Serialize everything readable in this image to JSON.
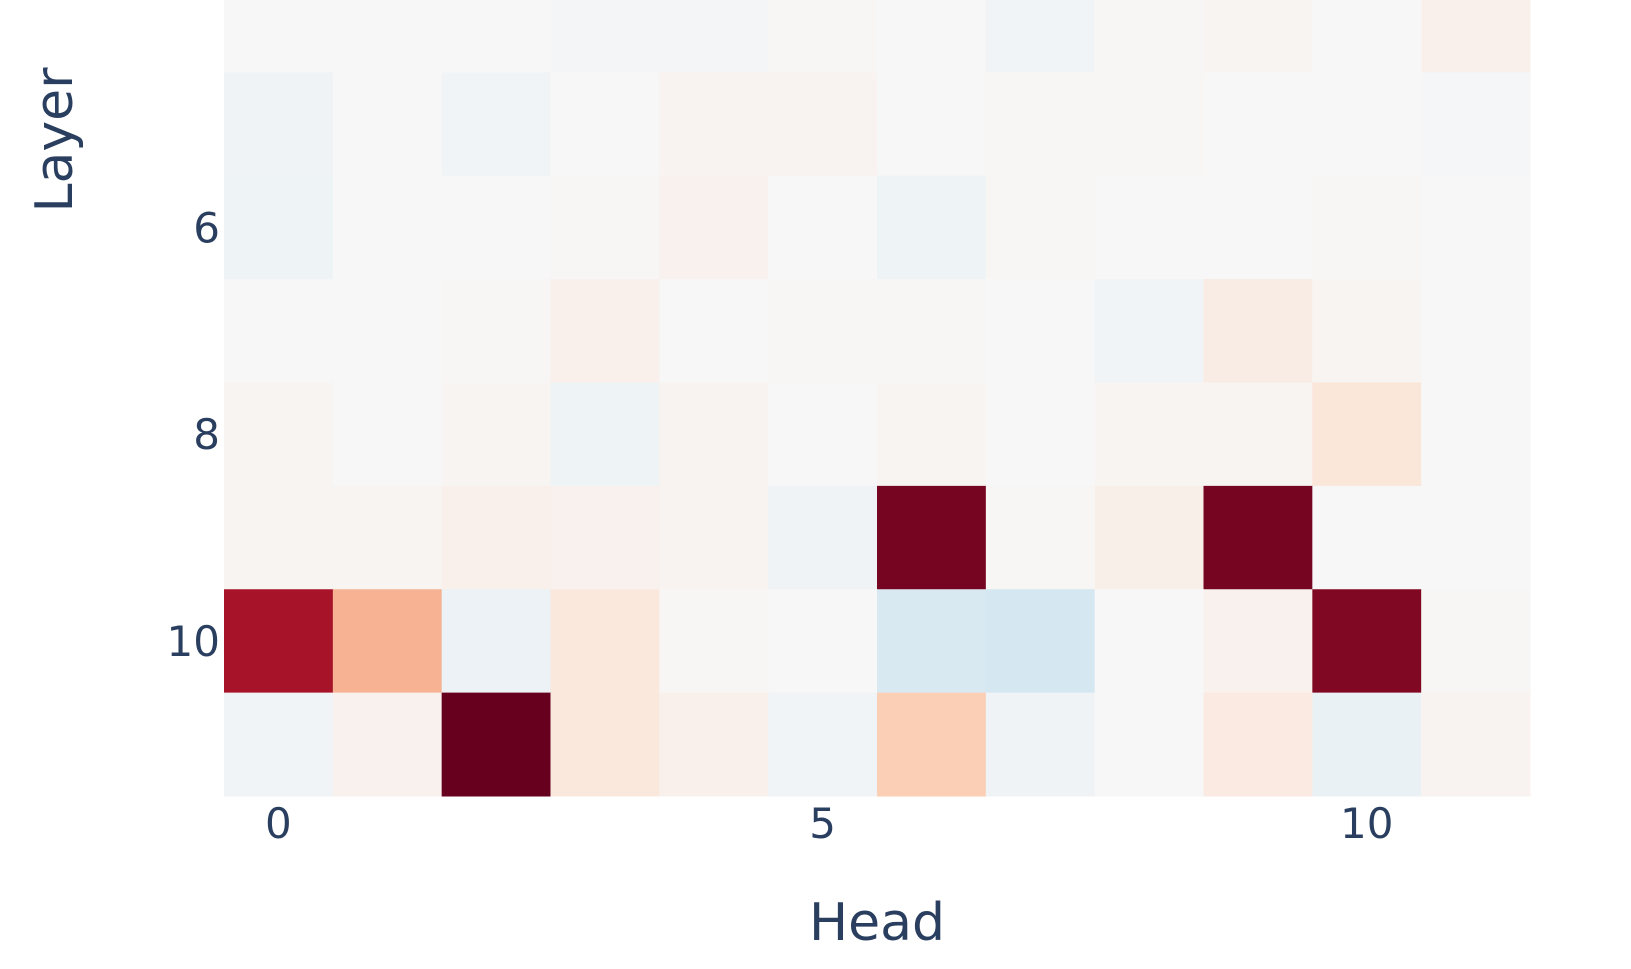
{
  "chart_data": {
    "type": "heatmap",
    "title": "",
    "xlabel": "Head",
    "ylabel": "Layer",
    "x_ticks": [
      0,
      5,
      10
    ],
    "y_ticks": [
      6,
      8,
      10
    ],
    "x_categories": [
      0,
      1,
      2,
      3,
      4,
      5,
      6,
      7,
      8,
      9,
      10,
      11
    ],
    "y_categories": [
      4,
      5,
      6,
      7,
      8,
      9,
      10,
      11
    ],
    "y_visible_range": [
      3.8,
      11.5
    ],
    "colorscale": "RdBu (reversed)",
    "zmin": -1,
    "zmax": 1,
    "z": [
      [
        0.0,
        0.0,
        0.0,
        -0.02,
        -0.02,
        0.01,
        0.0,
        -0.03,
        0.01,
        0.02,
        0.0,
        0.05
      ],
      [
        -0.04,
        0.0,
        -0.03,
        0.0,
        0.03,
        0.03,
        0.0,
        0.01,
        0.01,
        0.0,
        0.0,
        -0.01
      ],
      [
        -0.05,
        0.0,
        0.0,
        0.01,
        0.04,
        0.0,
        -0.05,
        0.01,
        0.0,
        0.0,
        0.01,
        0.0
      ],
      [
        0.0,
        0.0,
        0.01,
        0.05,
        0.0,
        0.01,
        0.01,
        0.0,
        -0.03,
        0.08,
        0.02,
        0.0
      ],
      [
        0.02,
        0.0,
        0.02,
        -0.05,
        0.03,
        0.0,
        0.02,
        0.0,
        0.02,
        0.02,
        0.12,
        0.0
      ],
      [
        0.02,
        0.02,
        0.05,
        0.04,
        0.03,
        -0.04,
        0.96,
        0.01,
        0.06,
        0.96,
        0.0,
        0.0
      ],
      [
        0.83,
        0.35,
        -0.06,
        0.11,
        0.01,
        0.0,
        -0.16,
        -0.18,
        0.0,
        0.04,
        0.93,
        0.01
      ],
      [
        -0.03,
        0.04,
        1.0,
        0.11,
        0.05,
        -0.03,
        0.25,
        -0.04,
        0.0,
        0.09,
        -0.07,
        0.03
      ]
    ]
  }
}
